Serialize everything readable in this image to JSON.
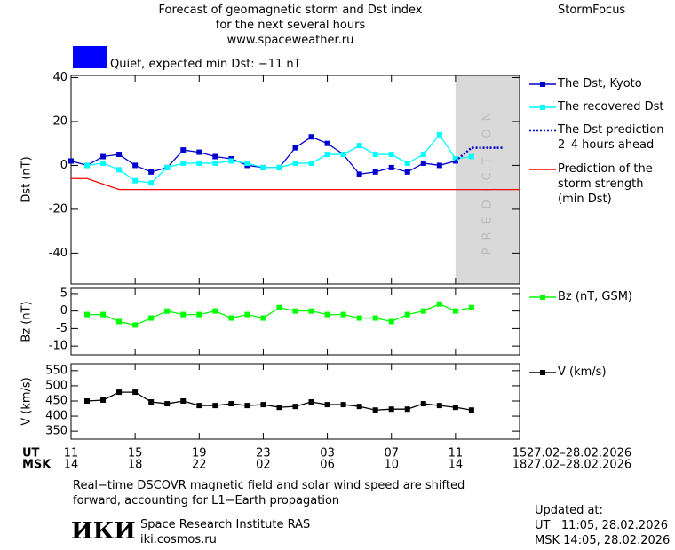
{
  "header": {
    "title_lines": [
      "Forecast of geomagnetic storm and Dst index",
      "for the next several hours",
      "www.spaceweather.ru"
    ],
    "brand": "StormFocus"
  },
  "status": {
    "color": "#0000ff",
    "text": "Quiet, expected min Dst: −11 nT"
  },
  "time_axis": {
    "xlim": [
      0,
      28
    ],
    "rows": [
      {
        "name": "UT",
        "dates": "27.02–28.02.2026",
        "ticks": [
          {
            "value": 0,
            "label": "11"
          },
          {
            "value": 4,
            "label": "15"
          },
          {
            "value": 8,
            "label": "19"
          },
          {
            "value": 12,
            "label": "23"
          },
          {
            "value": 16,
            "label": "03"
          },
          {
            "value": 20,
            "label": "07"
          },
          {
            "value": 24,
            "label": "11"
          },
          {
            "value": 28,
            "label": "15"
          }
        ]
      },
      {
        "name": "MSK",
        "dates": "27.02–28.02.2026",
        "ticks": [
          {
            "value": 0,
            "label": "14"
          },
          {
            "value": 4,
            "label": "18"
          },
          {
            "value": 8,
            "label": "22"
          },
          {
            "value": 12,
            "label": "02"
          },
          {
            "value": 16,
            "label": "06"
          },
          {
            "value": 20,
            "label": "10"
          },
          {
            "value": 24,
            "label": "14"
          },
          {
            "value": 28,
            "label": "18"
          }
        ]
      }
    ]
  },
  "chart_data": [
    {
      "type": "line",
      "y_label": "Dst (nT)",
      "ylim": [
        -54,
        41
      ],
      "yticks": [
        40,
        20,
        0,
        -20,
        -40
      ],
      "shade": {
        "xrange": [
          24,
          28
        ],
        "label": "PREDICTION",
        "color": "#d9d9d9"
      },
      "series": [
        {
          "name": "The Dst, Kyoto",
          "color": "#0000cc",
          "marker": "square",
          "line_style": "solid",
          "x": [
            0,
            1,
            2,
            3,
            4,
            5,
            6,
            7,
            8,
            9,
            10,
            11,
            12,
            13,
            14,
            15,
            16,
            17,
            18,
            19,
            20,
            21,
            22,
            23,
            24
          ],
          "values": [
            2,
            0,
            4,
            5,
            0,
            -3,
            -1,
            7,
            6,
            4,
            3,
            0,
            -1,
            -1,
            8,
            13,
            10,
            5,
            -4,
            -3,
            -1,
            -3,
            1,
            0,
            2
          ]
        },
        {
          "name": "The recovered Dst",
          "color": "#00ffff",
          "marker": "square",
          "line_style": "solid",
          "x": [
            1,
            2,
            3,
            4,
            5,
            6,
            7,
            8,
            9,
            10,
            11,
            12,
            13,
            14,
            15,
            16,
            17,
            18,
            19,
            20,
            21,
            22,
            23,
            24,
            25
          ],
          "values": [
            0,
            1,
            -2,
            -7,
            -8,
            -1,
            1,
            1,
            1,
            2,
            1,
            -1,
            -1,
            1,
            1,
            5,
            5,
            9,
            5,
            5,
            1,
            5,
            14,
            3,
            4
          ]
        },
        {
          "name": "The Dst prediction\n2–4 hours ahead",
          "color": "#0000cc",
          "marker": "none",
          "line_style": "dotted",
          "x": [
            24,
            25,
            26,
            27
          ],
          "values": [
            2,
            8,
            8,
            8
          ]
        },
        {
          "name": "Prediction of the\nstorm strength\n(min Dst)",
          "color": "#ff0000",
          "marker": "none",
          "line_style": "solid",
          "x": [
            0,
            1,
            3,
            28
          ],
          "values": [
            -6,
            -6,
            -11,
            -11
          ]
        }
      ]
    },
    {
      "type": "line",
      "y_label": "Bz (nT)",
      "ylim": [
        -12.5,
        6.5
      ],
      "yticks": [
        5,
        0,
        -5,
        -10
      ],
      "series": [
        {
          "name": "Bz (nT, GSM)",
          "color": "#00ff00",
          "marker": "square",
          "line_style": "solid",
          "x": [
            1,
            2,
            3,
            4,
            5,
            6,
            7,
            8,
            9,
            10,
            11,
            12,
            13,
            14,
            15,
            16,
            17,
            18,
            19,
            20,
            21,
            22,
            23,
            24,
            25
          ],
          "values": [
            -1,
            -1,
            -3,
            -4,
            -2,
            0,
            -1,
            -1,
            0,
            -2,
            -1,
            -2,
            1,
            0,
            0,
            -1,
            -1,
            -2,
            -2,
            -3,
            -1,
            0,
            2,
            0,
            1
          ]
        }
      ]
    },
    {
      "type": "line",
      "y_label": "V (km/s)",
      "ylim": [
        324,
        573
      ],
      "yticks": [
        550,
        500,
        450,
        400,
        350
      ],
      "series": [
        {
          "name": "V (km/s)",
          "color": "#000000",
          "marker": "square",
          "line_style": "solid",
          "x": [
            1,
            2,
            3,
            4,
            5,
            6,
            7,
            8,
            9,
            10,
            11,
            12,
            13,
            14,
            15,
            16,
            17,
            18,
            19,
            20,
            21,
            22,
            23,
            24,
            25
          ],
          "values": [
            450,
            453,
            479,
            479,
            447,
            441,
            450,
            435,
            435,
            441,
            435,
            438,
            429,
            432,
            447,
            438,
            438,
            432,
            420,
            423,
            423,
            441,
            435,
            429,
            420
          ]
        }
      ]
    }
  ],
  "footer": {
    "note_lines": [
      "Real−time DSCOVR magnetic field and solar wind speed are shifted",
      "forward, accounting for L1−Earth propagation"
    ],
    "logo": "ИКИ",
    "institute": "Space Research Institute RAS",
    "site": "iki.cosmos.ru",
    "updated_title": "Updated at:",
    "updated_lines": [
      "UT   11:05, 28.02.2026",
      "MSK 14:05, 28.02.2026"
    ]
  }
}
